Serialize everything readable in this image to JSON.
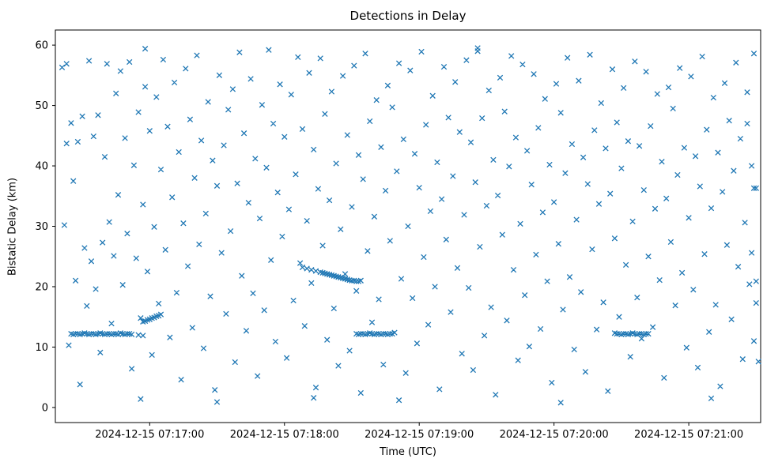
{
  "chart_data": {
    "type": "scatter",
    "title": "Detections in Delay",
    "xlabel": "Time (UTC)",
    "ylabel": "Bistatic Delay (km)",
    "marker": "x",
    "marker_color": "#1f77b4",
    "background_color": "#ffffff",
    "legend": "none",
    "grid": "off",
    "x_unit": "seconds since 2024-12-15 07:16:00 UTC",
    "xlim": [
      18,
      332
    ],
    "ylim": [
      -2.5,
      62.5
    ],
    "x_ticks": [
      {
        "t": 60,
        "label": "2024-12-15 07:17:00"
      },
      {
        "t": 120,
        "label": "2024-12-15 07:18:00"
      },
      {
        "t": 180,
        "label": "2024-12-15 07:19:00"
      },
      {
        "t": 240,
        "label": "2024-12-15 07:20:00"
      },
      {
        "t": 300,
        "label": "2024-12-15 07:21:00"
      }
    ],
    "y_ticks": [
      0,
      10,
      20,
      30,
      40,
      50,
      60
    ],
    "points": [
      [
        25,
        12.2
      ],
      [
        26,
        12.1
      ],
      [
        27,
        12.2
      ],
      [
        28,
        12.2
      ],
      [
        29,
        12.1
      ],
      [
        30,
        12.2
      ],
      [
        31,
        12.3
      ],
      [
        32,
        12.2
      ],
      [
        33,
        12.1
      ],
      [
        34,
        12.2
      ],
      [
        35,
        12.2
      ],
      [
        36,
        12.1
      ],
      [
        37,
        12.2
      ],
      [
        38,
        12.3
      ],
      [
        39,
        12.2
      ],
      [
        40,
        12.1
      ],
      [
        41,
        12.2
      ],
      [
        42,
        12.2
      ],
      [
        43,
        12.1
      ],
      [
        44,
        12.2
      ],
      [
        45,
        12.2
      ],
      [
        46,
        12.1
      ],
      [
        47,
        12.3
      ],
      [
        48,
        12.2
      ],
      [
        49,
        12.1
      ],
      [
        50,
        12.2
      ],
      [
        51,
        12.2
      ],
      [
        52,
        12.1
      ],
      [
        55,
        12.0
      ],
      [
        57,
        11.9
      ],
      [
        57,
        14.2
      ],
      [
        58,
        14.3
      ],
      [
        59,
        14.5
      ],
      [
        60,
        14.6
      ],
      [
        61,
        14.8
      ],
      [
        62,
        14.9
      ],
      [
        63,
        15.1
      ],
      [
        64,
        15.2
      ],
      [
        65,
        15.4
      ],
      [
        128,
        23.2
      ],
      [
        130,
        23.0
      ],
      [
        132,
        22.8
      ],
      [
        134,
        22.6
      ],
      [
        136,
        22.4
      ],
      [
        137,
        22.3
      ],
      [
        138,
        22.2
      ],
      [
        139,
        22.1
      ],
      [
        140,
        22.0
      ],
      [
        141,
        21.9
      ],
      [
        142,
        21.8
      ],
      [
        143,
        21.7
      ],
      [
        144,
        21.6
      ],
      [
        145,
        21.5
      ],
      [
        146,
        21.4
      ],
      [
        147,
        21.3
      ],
      [
        148,
        21.2
      ],
      [
        149,
        21.1
      ],
      [
        150,
        21.0
      ],
      [
        151,
        21.0
      ],
      [
        152,
        20.9
      ],
      [
        153,
        20.9
      ],
      [
        154,
        21.0
      ],
      [
        152,
        12.2
      ],
      [
        153,
        12.1
      ],
      [
        154,
        12.2
      ],
      [
        155,
        12.2
      ],
      [
        156,
        12.1
      ],
      [
        157,
        12.2
      ],
      [
        158,
        12.3
      ],
      [
        159,
        12.2
      ],
      [
        160,
        12.1
      ],
      [
        161,
        12.2
      ],
      [
        162,
        12.2
      ],
      [
        163,
        12.1
      ],
      [
        164,
        12.2
      ],
      [
        165,
        12.2
      ],
      [
        166,
        12.1
      ],
      [
        167,
        12.2
      ],
      [
        168,
        12.2
      ],
      [
        267,
        12.3
      ],
      [
        268,
        12.2
      ],
      [
        269,
        12.2
      ],
      [
        270,
        12.1
      ],
      [
        271,
        12.2
      ],
      [
        272,
        12.2
      ],
      [
        273,
        12.1
      ],
      [
        274,
        12.2
      ],
      [
        275,
        12.3
      ],
      [
        276,
        12.2
      ],
      [
        277,
        12.1
      ],
      [
        278,
        12.2
      ],
      [
        279,
        12.2
      ],
      [
        280,
        12.1
      ],
      [
        281,
        12.2
      ],
      [
        282,
        12.2
      ],
      [
        21,
        56.3
      ],
      [
        22,
        30.2
      ],
      [
        23,
        43.7
      ],
      [
        24,
        10.3
      ],
      [
        25,
        47.1
      ],
      [
        26,
        37.5
      ],
      [
        27,
        21.0
      ],
      [
        28,
        44.0
      ],
      [
        29,
        3.8
      ],
      [
        30,
        48.2
      ],
      [
        31,
        26.4
      ],
      [
        32,
        16.8
      ],
      [
        33,
        57.4
      ],
      [
        34,
        24.2
      ],
      [
        35,
        44.9
      ],
      [
        36,
        19.6
      ],
      [
        37,
        48.4
      ],
      [
        38,
        9.1
      ],
      [
        39,
        27.3
      ],
      [
        40,
        41.5
      ],
      [
        41,
        56.9
      ],
      [
        42,
        30.7
      ],
      [
        43,
        13.9
      ],
      [
        44,
        25.1
      ],
      [
        45,
        52.0
      ],
      [
        46,
        35.2
      ],
      [
        47,
        55.7
      ],
      [
        48,
        20.3
      ],
      [
        49,
        44.6
      ],
      [
        50,
        28.8
      ],
      [
        51,
        57.2
      ],
      [
        52,
        6.4
      ],
      [
        53,
        40.1
      ],
      [
        54,
        24.7
      ],
      [
        55,
        48.9
      ],
      [
        56,
        14.8
      ],
      [
        57,
        33.6
      ],
      [
        58,
        53.1
      ],
      [
        59,
        22.5
      ],
      [
        60,
        45.8
      ],
      [
        61,
        8.7
      ],
      [
        62,
        29.9
      ],
      [
        63,
        51.4
      ],
      [
        64,
        17.2
      ],
      [
        65,
        39.4
      ],
      [
        66,
        57.6
      ],
      [
        67,
        26.1
      ],
      [
        68,
        46.5
      ],
      [
        69,
        11.6
      ],
      [
        70,
        34.8
      ],
      [
        71,
        53.8
      ],
      [
        72,
        19.0
      ],
      [
        73,
        42.3
      ],
      [
        74,
        4.6
      ],
      [
        75,
        30.5
      ],
      [
        76,
        56.1
      ],
      [
        77,
        23.4
      ],
      [
        78,
        47.7
      ],
      [
        79,
        13.2
      ],
      [
        80,
        38.0
      ],
      [
        81,
        58.3
      ],
      [
        82,
        27.0
      ],
      [
        83,
        44.2
      ],
      [
        84,
        9.8
      ],
      [
        85,
        32.1
      ],
      [
        86,
        50.6
      ],
      [
        87,
        18.4
      ],
      [
        88,
        40.9
      ],
      [
        89,
        2.9
      ],
      [
        90,
        36.7
      ],
      [
        91,
        55.0
      ],
      [
        92,
        25.6
      ],
      [
        93,
        43.4
      ],
      [
        94,
        15.5
      ],
      [
        95,
        49.3
      ],
      [
        96,
        29.2
      ],
      [
        97,
        52.7
      ],
      [
        98,
        7.5
      ],
      [
        99,
        37.1
      ],
      [
        100,
        58.8
      ],
      [
        101,
        21.8
      ],
      [
        102,
        45.4
      ],
      [
        103,
        12.7
      ],
      [
        104,
        33.9
      ],
      [
        105,
        54.4
      ],
      [
        106,
        18.9
      ],
      [
        107,
        41.2
      ],
      [
        108,
        5.2
      ],
      [
        109,
        31.3
      ],
      [
        110,
        50.1
      ],
      [
        111,
        16.1
      ],
      [
        112,
        39.7
      ],
      [
        113,
        59.2
      ],
      [
        114,
        24.4
      ],
      [
        115,
        47.0
      ],
      [
        116,
        10.9
      ],
      [
        117,
        35.6
      ],
      [
        118,
        53.5
      ],
      [
        119,
        28.3
      ],
      [
        120,
        44.8
      ],
      [
        121,
        8.2
      ],
      [
        122,
        32.8
      ],
      [
        123,
        51.8
      ],
      [
        124,
        17.7
      ],
      [
        125,
        38.6
      ],
      [
        126,
        58.0
      ],
      [
        127,
        23.9
      ],
      [
        128,
        46.1
      ],
      [
        129,
        13.5
      ],
      [
        130,
        30.9
      ],
      [
        131,
        55.4
      ],
      [
        132,
        20.6
      ],
      [
        133,
        42.7
      ],
      [
        134,
        3.3
      ],
      [
        135,
        36.2
      ],
      [
        136,
        57.8
      ],
      [
        137,
        26.8
      ],
      [
        138,
        48.6
      ],
      [
        139,
        11.2
      ],
      [
        140,
        34.3
      ],
      [
        141,
        52.3
      ],
      [
        142,
        16.4
      ],
      [
        143,
        40.4
      ],
      [
        144,
        6.9
      ],
      [
        145,
        29.5
      ],
      [
        146,
        54.9
      ],
      [
        147,
        22.1
      ],
      [
        148,
        45.1
      ],
      [
        149,
        9.4
      ],
      [
        150,
        33.2
      ],
      [
        151,
        56.6
      ],
      [
        152,
        19.3
      ],
      [
        153,
        41.8
      ],
      [
        154,
        2.4
      ],
      [
        155,
        37.8
      ],
      [
        156,
        58.6
      ],
      [
        157,
        25.9
      ],
      [
        158,
        47.4
      ],
      [
        159,
        14.1
      ],
      [
        160,
        31.6
      ],
      [
        161,
        50.9
      ],
      [
        162,
        17.9
      ],
      [
        163,
        43.1
      ],
      [
        164,
        7.1
      ],
      [
        165,
        35.9
      ],
      [
        166,
        53.3
      ],
      [
        167,
        27.6
      ],
      [
        168,
        49.7
      ],
      [
        169,
        12.4
      ],
      [
        170,
        39.1
      ],
      [
        171,
        57.0
      ],
      [
        172,
        21.3
      ],
      [
        173,
        44.4
      ],
      [
        174,
        5.7
      ],
      [
        175,
        30.0
      ],
      [
        176,
        55.8
      ],
      [
        177,
        18.1
      ],
      [
        178,
        42.0
      ],
      [
        179,
        10.6
      ],
      [
        180,
        36.4
      ],
      [
        181,
        58.9
      ],
      [
        182,
        24.9
      ],
      [
        183,
        46.8
      ],
      [
        184,
        13.7
      ],
      [
        185,
        32.5
      ],
      [
        186,
        51.6
      ],
      [
        187,
        20.0
      ],
      [
        188,
        40.6
      ],
      [
        189,
        3.0
      ],
      [
        190,
        34.5
      ],
      [
        191,
        56.4
      ],
      [
        192,
        27.8
      ],
      [
        193,
        48.0
      ],
      [
        194,
        15.8
      ],
      [
        195,
        38.3
      ],
      [
        196,
        53.9
      ],
      [
        197,
        23.1
      ],
      [
        198,
        45.6
      ],
      [
        199,
        8.9
      ],
      [
        200,
        31.9
      ],
      [
        201,
        57.5
      ],
      [
        202,
        19.8
      ],
      [
        203,
        43.9
      ],
      [
        204,
        6.2
      ],
      [
        205,
        37.3
      ],
      [
        206,
        59.0
      ],
      [
        207,
        26.6
      ],
      [
        208,
        47.9
      ],
      [
        209,
        11.9
      ],
      [
        210,
        33.4
      ],
      [
        211,
        52.5
      ],
      [
        212,
        16.6
      ],
      [
        213,
        41.0
      ],
      [
        214,
        2.1
      ],
      [
        215,
        35.1
      ],
      [
        216,
        54.6
      ],
      [
        217,
        28.6
      ],
      [
        218,
        49.0
      ],
      [
        219,
        14.4
      ],
      [
        220,
        39.9
      ],
      [
        221,
        58.2
      ],
      [
        222,
        22.8
      ],
      [
        223,
        44.7
      ],
      [
        224,
        7.8
      ],
      [
        225,
        30.4
      ],
      [
        226,
        56.8
      ],
      [
        227,
        18.6
      ],
      [
        228,
        42.5
      ],
      [
        229,
        10.1
      ],
      [
        230,
        36.9
      ],
      [
        231,
        55.2
      ],
      [
        232,
        25.3
      ],
      [
        233,
        46.3
      ],
      [
        234,
        13.0
      ],
      [
        235,
        32.3
      ],
      [
        236,
        51.1
      ],
      [
        237,
        20.9
      ],
      [
        238,
        40.2
      ],
      [
        239,
        4.1
      ],
      [
        240,
        34.0
      ],
      [
        241,
        53.6
      ],
      [
        242,
        27.1
      ],
      [
        243,
        48.8
      ],
      [
        244,
        16.2
      ],
      [
        245,
        38.8
      ],
      [
        246,
        57.9
      ],
      [
        247,
        21.6
      ],
      [
        248,
        43.6
      ],
      [
        249,
        9.6
      ],
      [
        250,
        31.1
      ],
      [
        251,
        54.1
      ],
      [
        252,
        19.1
      ],
      [
        253,
        41.4
      ],
      [
        254,
        5.9
      ],
      [
        255,
        37.0
      ],
      [
        256,
        58.4
      ],
      [
        257,
        26.2
      ],
      [
        258,
        45.9
      ],
      [
        259,
        12.9
      ],
      [
        260,
        33.7
      ],
      [
        261,
        50.4
      ],
      [
        262,
        17.4
      ],
      [
        263,
        42.9
      ],
      [
        264,
        2.7
      ],
      [
        265,
        35.4
      ],
      [
        266,
        56.0
      ],
      [
        267,
        28.0
      ],
      [
        268,
        47.2
      ],
      [
        269,
        15.0
      ],
      [
        270,
        39.6
      ],
      [
        271,
        52.9
      ],
      [
        272,
        23.6
      ],
      [
        273,
        44.1
      ],
      [
        274,
        8.4
      ],
      [
        275,
        30.8
      ],
      [
        276,
        57.3
      ],
      [
        277,
        18.2
      ],
      [
        278,
        43.3
      ],
      [
        279,
        11.4
      ],
      [
        280,
        36.0
      ],
      [
        281,
        55.6
      ],
      [
        282,
        25.0
      ],
      [
        283,
        46.6
      ],
      [
        284,
        13.3
      ],
      [
        285,
        32.9
      ],
      [
        286,
        51.9
      ],
      [
        287,
        21.1
      ],
      [
        288,
        40.7
      ],
      [
        289,
        4.9
      ],
      [
        290,
        34.6
      ],
      [
        291,
        53.0
      ],
      [
        292,
        27.4
      ],
      [
        293,
        49.5
      ],
      [
        294,
        16.9
      ],
      [
        295,
        38.5
      ],
      [
        296,
        56.2
      ],
      [
        297,
        22.3
      ],
      [
        298,
        43.0
      ],
      [
        299,
        9.9
      ],
      [
        300,
        31.4
      ],
      [
        301,
        54.8
      ],
      [
        302,
        19.5
      ],
      [
        303,
        41.6
      ],
      [
        304,
        6.6
      ],
      [
        305,
        36.6
      ],
      [
        306,
        58.1
      ],
      [
        307,
        25.4
      ],
      [
        308,
        46.0
      ],
      [
        309,
        12.5
      ],
      [
        310,
        33.0
      ],
      [
        311,
        51.3
      ],
      [
        312,
        17.0
      ],
      [
        313,
        42.2
      ],
      [
        314,
        3.5
      ],
      [
        315,
        35.7
      ],
      [
        316,
        53.7
      ],
      [
        317,
        26.9
      ],
      [
        318,
        47.5
      ],
      [
        319,
        14.6
      ],
      [
        320,
        39.2
      ],
      [
        321,
        57.1
      ],
      [
        322,
        23.3
      ],
      [
        323,
        44.5
      ],
      [
        324,
        8.0
      ],
      [
        325,
        30.6
      ],
      [
        326,
        52.2
      ],
      [
        327,
        20.4
      ],
      [
        328,
        40.0
      ],
      [
        329,
        11.0
      ],
      [
        330,
        36.3
      ],
      [
        90,
        0.9
      ],
      [
        171,
        1.2
      ],
      [
        243,
        0.8
      ],
      [
        310,
        1.5
      ],
      [
        56,
        1.4
      ],
      [
        133,
        1.6
      ],
      [
        58,
        59.4
      ],
      [
        206,
        59.5
      ],
      [
        23,
        56.9
      ],
      [
        326,
        47.0
      ],
      [
        328,
        25.6
      ],
      [
        329,
        36.3
      ],
      [
        330,
        20.9
      ],
      [
        330,
        17.3
      ],
      [
        331,
        7.6
      ],
      [
        329,
        58.6
      ]
    ]
  }
}
